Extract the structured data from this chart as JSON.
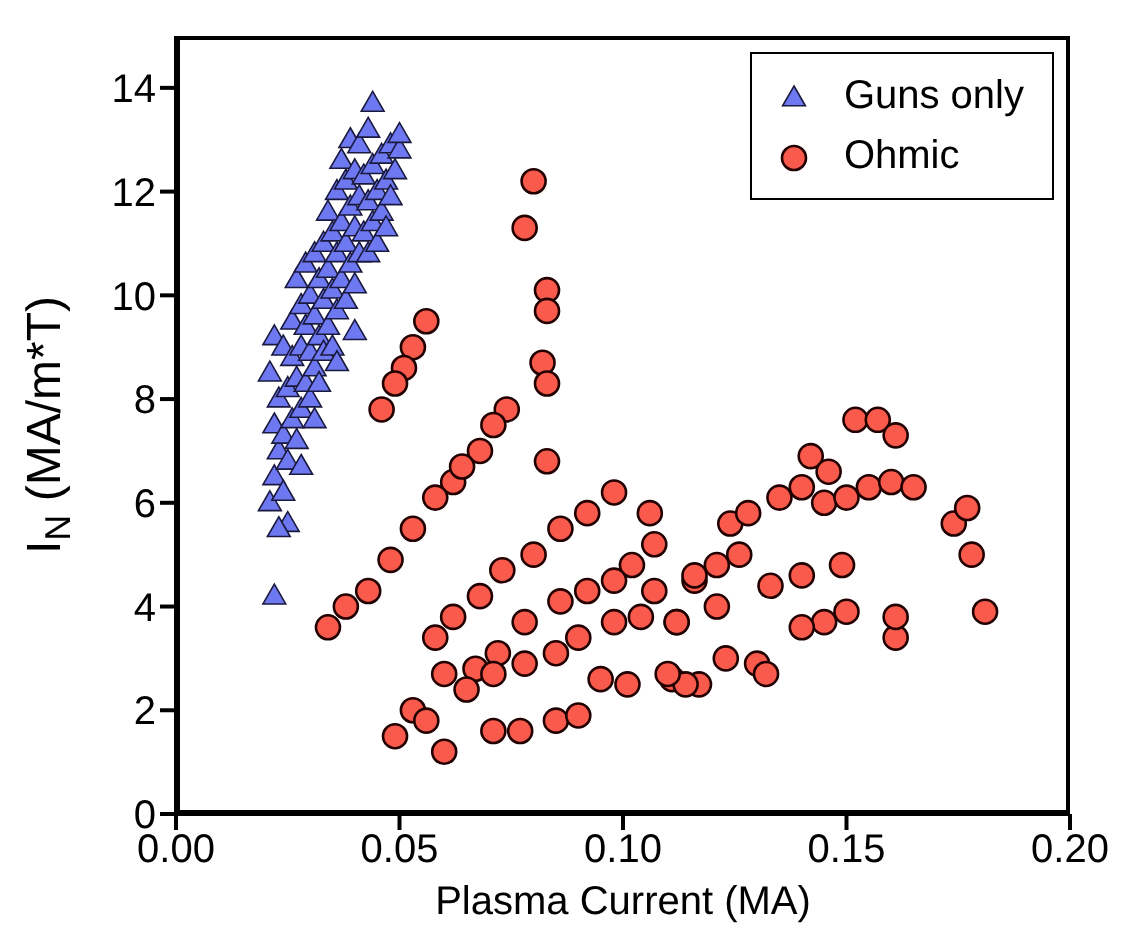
{
  "chart_data": {
    "type": "scatter",
    "xlabel": "Plasma Current (MA)",
    "ylabel": "I$_{N}$ (MA/m*T)",
    "xlim": [
      0,
      0.2
    ],
    "xticks": [
      {
        "value": 0,
        "label": "0.00"
      },
      0.05,
      {
        "value": 0.1,
        "label": "0.10"
      },
      0.15,
      {
        "value": 0.2,
        "label": "0.20"
      }
    ],
    "ylim": [
      0,
      15
    ],
    "yticks": [
      0,
      2,
      4,
      6,
      8,
      10,
      12,
      14
    ],
    "grid": false,
    "legend": "top right",
    "series": [
      {
        "name": "Guns only",
        "color": "#6e78f0",
        "marker": "triangle",
        "x": [
          0.022,
          0.021,
          0.022,
          0.023,
          0.022,
          0.023,
          0.021,
          0.022,
          0.024,
          0.024,
          0.025,
          0.025,
          0.024,
          0.026,
          0.026,
          0.026,
          0.027,
          0.027,
          0.027,
          0.028,
          0.028,
          0.028,
          0.029,
          0.029,
          0.029,
          0.03,
          0.03,
          0.03,
          0.031,
          0.031,
          0.031,
          0.032,
          0.032,
          0.032,
          0.033,
          0.033,
          0.033,
          0.034,
          0.034,
          0.034,
          0.035,
          0.035,
          0.035,
          0.036,
          0.036,
          0.036,
          0.037,
          0.037,
          0.037,
          0.038,
          0.038,
          0.038,
          0.039,
          0.039,
          0.039,
          0.04,
          0.04,
          0.04,
          0.041,
          0.041,
          0.041,
          0.042,
          0.042,
          0.043,
          0.043,
          0.043,
          0.044,
          0.044,
          0.044,
          0.045,
          0.045,
          0.046,
          0.046,
          0.047,
          0.047,
          0.048,
          0.048,
          0.049,
          0.05,
          0.05,
          0.025,
          0.023,
          0.028,
          0.031,
          0.036,
          0.04
        ],
        "values": [
          4.2,
          6.0,
          6.5,
          7.0,
          7.5,
          8.0,
          8.5,
          9.2,
          6.2,
          7.3,
          6.8,
          8.2,
          9.0,
          7.6,
          8.8,
          9.5,
          7.2,
          8.4,
          10.3,
          7.8,
          9.0,
          9.8,
          8.3,
          9.4,
          10.6,
          8.0,
          8.9,
          10.0,
          8.6,
          9.6,
          10.8,
          8.3,
          9.2,
          10.3,
          8.9,
          9.9,
          11.0,
          9.4,
          10.5,
          11.6,
          9.0,
          10.1,
          11.2,
          9.7,
          10.8,
          12.0,
          10.3,
          11.4,
          12.6,
          9.9,
          11.0,
          12.2,
          10.6,
          11.7,
          13.0,
          10.2,
          11.3,
          12.4,
          10.8,
          11.9,
          12.9,
          11.2,
          12.3,
          10.8,
          11.8,
          13.2,
          11.4,
          12.5,
          13.7,
          11.0,
          12.0,
          11.6,
          12.7,
          11.3,
          12.2,
          11.9,
          12.9,
          12.4,
          12.8,
          13.1,
          5.6,
          5.5,
          6.7,
          7.6,
          8.7,
          9.3
        ]
      },
      {
        "name": "Ohmic",
        "color": "#fa5a4b",
        "marker": "circle",
        "x": [
          0.08,
          0.078,
          0.083,
          0.083,
          0.082,
          0.083,
          0.083,
          0.056,
          0.053,
          0.051,
          0.049,
          0.046,
          0.074,
          0.071,
          0.068,
          0.062,
          0.058,
          0.053,
          0.048,
          0.043,
          0.034,
          0.038,
          0.064,
          0.098,
          0.092,
          0.086,
          0.08,
          0.073,
          0.068,
          0.062,
          0.058,
          0.106,
          0.107,
          0.102,
          0.098,
          0.092,
          0.086,
          0.078,
          0.072,
          0.067,
          0.06,
          0.053,
          0.049,
          0.06,
          0.107,
          0.104,
          0.098,
          0.09,
          0.085,
          0.078,
          0.071,
          0.065,
          0.056,
          0.071,
          0.077,
          0.085,
          0.09,
          0.101,
          0.095,
          0.112,
          0.116,
          0.111,
          0.117,
          0.152,
          0.157,
          0.161,
          0.142,
          0.146,
          0.135,
          0.14,
          0.145,
          0.15,
          0.155,
          0.16,
          0.165,
          0.174,
          0.177,
          0.178,
          0.181,
          0.161,
          0.161,
          0.15,
          0.145,
          0.14,
          0.149,
          0.14,
          0.133,
          0.124,
          0.128,
          0.126,
          0.121,
          0.116,
          0.121,
          0.112,
          0.13,
          0.132,
          0.123,
          0.114,
          0.11
        ],
        "values": [
          12.2,
          11.3,
          10.1,
          9.7,
          8.7,
          8.3,
          6.8,
          9.5,
          9.0,
          8.6,
          8.3,
          7.8,
          7.8,
          7.5,
          7.0,
          6.4,
          6.1,
          5.5,
          4.9,
          4.3,
          3.6,
          4.0,
          6.7,
          6.2,
          5.8,
          5.5,
          5.0,
          4.7,
          4.2,
          3.8,
          3.4,
          5.8,
          5.2,
          4.8,
          4.5,
          4.3,
          4.1,
          3.7,
          3.1,
          2.8,
          2.7,
          2.0,
          1.5,
          1.2,
          4.3,
          3.8,
          3.7,
          3.4,
          3.1,
          2.9,
          2.7,
          2.4,
          1.8,
          1.6,
          1.6,
          1.8,
          1.9,
          2.5,
          2.6,
          3.7,
          4.5,
          2.6,
          2.5,
          7.6,
          7.6,
          7.3,
          6.9,
          6.6,
          6.1,
          6.3,
          6.0,
          6.1,
          6.3,
          6.4,
          6.3,
          5.6,
          5.9,
          5.0,
          3.9,
          3.4,
          3.8,
          3.9,
          3.7,
          3.6,
          4.8,
          4.6,
          4.4,
          5.6,
          5.8,
          5.0,
          4.8,
          4.6,
          4.0,
          3.7,
          2.9,
          2.7,
          3.0,
          2.5,
          2.7
        ]
      }
    ]
  }
}
